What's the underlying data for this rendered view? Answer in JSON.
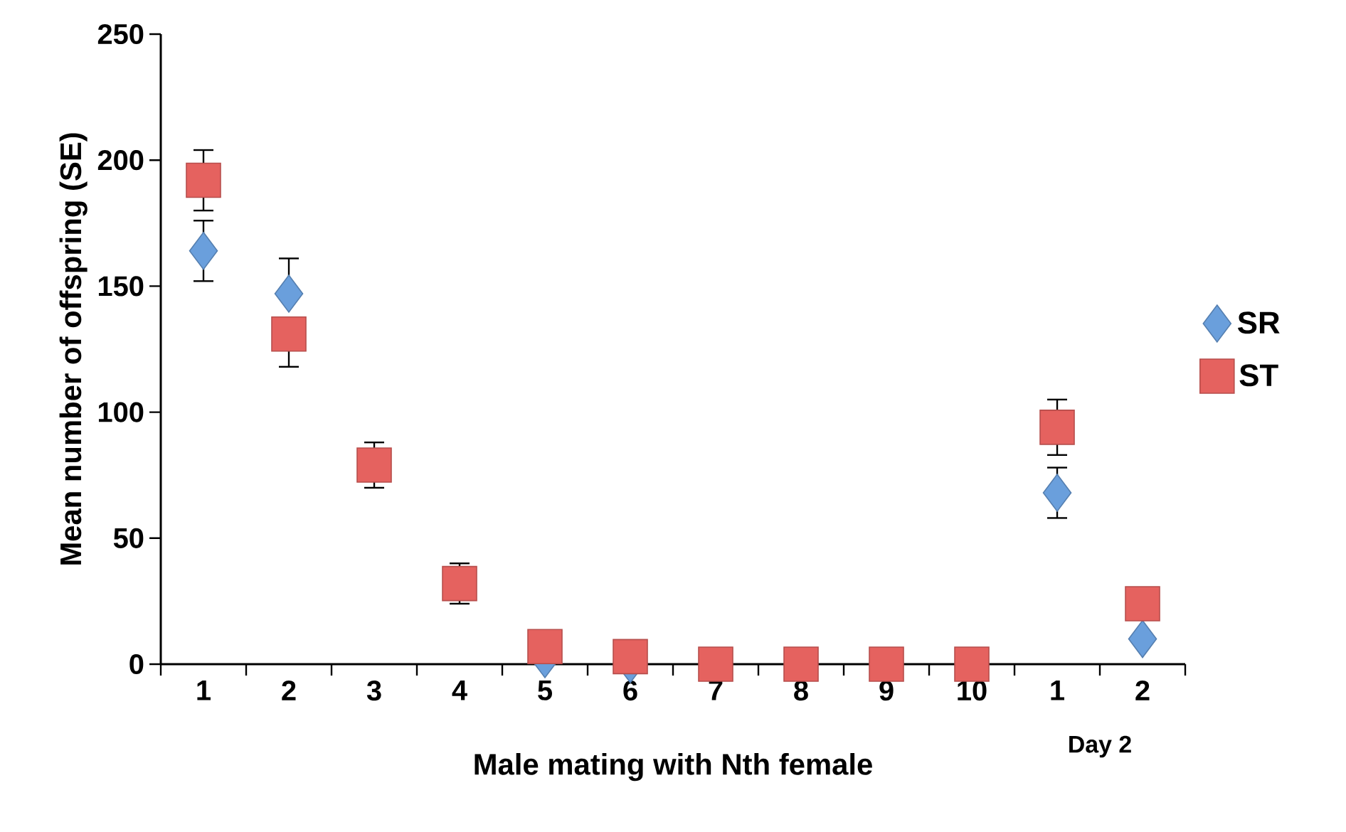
{
  "chart_data": {
    "type": "scatter",
    "xlabel": "Male mating with Nth female",
    "ylabel": "Mean number of offspring (SE)",
    "categories": [
      "1",
      "2",
      "3",
      "4",
      "5",
      "6",
      "7",
      "8",
      "9",
      "10",
      "1",
      "2"
    ],
    "annotations": [
      "Day 2"
    ],
    "ylim": [
      0,
      250
    ],
    "yticks": [
      0,
      50,
      100,
      150,
      200,
      250
    ],
    "grid": false,
    "legend": "right",
    "series": [
      {
        "name": "SR",
        "color": "#6a9fdc",
        "marker": "diamond",
        "values": [
          164,
          147,
          null,
          null,
          2,
          0,
          null,
          null,
          null,
          null,
          68,
          10
        ],
        "errors": [
          12,
          [
            147,
            161
          ],
          null,
          null,
          null,
          null,
          null,
          null,
          null,
          null,
          10,
          null
        ]
      },
      {
        "name": "ST",
        "color": "#e5625f",
        "marker": "square",
        "values": [
          192,
          131,
          79,
          32,
          7,
          3,
          0,
          0,
          0,
          0,
          94,
          24
        ],
        "errors": [
          12,
          [
            118,
            131
          ],
          9,
          8,
          null,
          null,
          null,
          null,
          null,
          null,
          11,
          null
        ]
      }
    ]
  }
}
